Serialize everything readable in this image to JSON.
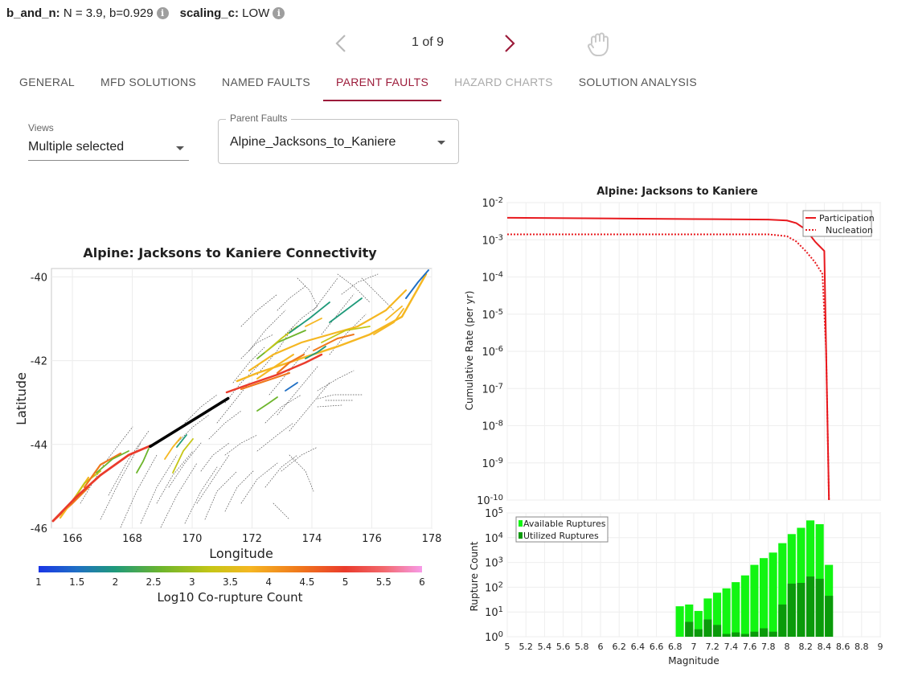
{
  "params": {
    "b_and_n_label": "b_and_n:",
    "b_and_n_value": "N = 3.9, b=0.929",
    "scaling_label": "scaling_c:",
    "scaling_value": "LOW"
  },
  "pager": {
    "count": "1 of 9"
  },
  "tabs": [
    {
      "label": "GENERAL",
      "state": "normal"
    },
    {
      "label": "MFD SOLUTIONS",
      "state": "normal"
    },
    {
      "label": "NAMED FAULTS",
      "state": "normal"
    },
    {
      "label": "PARENT FAULTS",
      "state": "active"
    },
    {
      "label": "HAZARD CHARTS",
      "state": "disabled"
    },
    {
      "label": "SOLUTION ANALYSIS",
      "state": "normal"
    }
  ],
  "views": {
    "label": "Views",
    "value": "Multiple selected"
  },
  "parent_faults": {
    "label": "Parent Faults",
    "value": "Alpine_Jacksons_to_Kaniere"
  },
  "colors": {
    "accent": "#9c1b3a",
    "participation": "#e8191e",
    "available": "#12f512",
    "utilized": "#0a9a0a"
  },
  "chart_data": [
    {
      "type": "map",
      "title": "Alpine: Jacksons to Kaniere Connectivity",
      "xlabel": "Longitude",
      "ylabel": "Latitude",
      "xlim": [
        165.3,
        178.0
      ],
      "ylim": [
        -46.0,
        -39.8
      ],
      "xticks": [
        "166",
        "168",
        "170",
        "172",
        "174",
        "176",
        "178"
      ],
      "yticks": [
        "-40",
        "-42",
        "-44",
        "-46"
      ],
      "colorbar": {
        "label": "Log10 Co-rupture Count",
        "range": [
          1,
          6
        ],
        "ticks": [
          "1",
          "1.5",
          "2",
          "2.5",
          "3",
          "3.5",
          "4",
          "4.5",
          "5",
          "5.5",
          "6"
        ]
      },
      "selected_fault": [
        [
          168.6,
          -44.05
        ],
        [
          171.2,
          -42.9
        ]
      ]
    },
    {
      "type": "line",
      "title": "Alpine: Jacksons to Kaniere",
      "ylabel": "Cumulative Rate (per yr)",
      "yscale": "log",
      "ylim": [
        1e-10,
        0.01
      ],
      "yticks": [
        {
          "base": "10",
          "exp": "-2"
        },
        {
          "base": "10",
          "exp": "-3"
        },
        {
          "base": "10",
          "exp": "-4"
        },
        {
          "base": "10",
          "exp": "-5"
        },
        {
          "base": "10",
          "exp": "-6"
        },
        {
          "base": "10",
          "exp": "-7"
        },
        {
          "base": "10",
          "exp": "-8"
        },
        {
          "base": "10",
          "exp": "-9"
        },
        {
          "base": "10",
          "exp": "-10"
        }
      ],
      "xlim": [
        5,
        9
      ],
      "legend_placement": "top-right",
      "series": [
        {
          "name": "Participation",
          "style": "solid",
          "x": [
            5.0,
            7.0,
            7.8,
            8.0,
            8.1,
            8.2,
            8.3,
            8.4,
            8.42,
            8.45
          ],
          "y": [
            0.0039,
            0.0036,
            0.0035,
            0.0033,
            0.0028,
            0.0019,
            0.0009,
            0.0005,
            1e-06,
            1e-10
          ]
        },
        {
          "name": "Nucleation",
          "style": "dotted",
          "x": [
            5.0,
            7.0,
            7.8,
            8.0,
            8.1,
            8.2,
            8.3,
            8.38,
            8.42,
            8.45
          ],
          "y": [
            0.0014,
            0.0014,
            0.0014,
            0.00125,
            0.0009,
            0.0005,
            0.00025,
            0.00012,
            1e-06,
            1e-10
          ]
        }
      ]
    },
    {
      "type": "bar",
      "xlabel": "Magnitude",
      "ylabel": "Rupture Count",
      "yscale": "log",
      "ylim": [
        1,
        100000
      ],
      "yticks": [
        {
          "base": "10",
          "exp": "0"
        },
        {
          "base": "10",
          "exp": "1"
        },
        {
          "base": "10",
          "exp": "2"
        },
        {
          "base": "10",
          "exp": "3"
        },
        {
          "base": "10",
          "exp": "4"
        },
        {
          "base": "10",
          "exp": "5"
        }
      ],
      "xlim": [
        5,
        9
      ],
      "xticks": [
        "5",
        "5.2",
        "5.4",
        "5.6",
        "5.8",
        "6",
        "6.2",
        "6.4",
        "6.6",
        "6.8",
        "7",
        "7.2",
        "7.4",
        "7.6",
        "7.8",
        "8",
        "8.2",
        "8.4",
        "8.6",
        "8.8",
        "9"
      ],
      "legend_placement": "top-left",
      "magnitudes": [
        6.85,
        6.95,
        7.05,
        7.15,
        7.25,
        7.35,
        7.45,
        7.55,
        7.65,
        7.75,
        7.85,
        7.95,
        8.05,
        8.15,
        8.25,
        8.35,
        8.45
      ],
      "series": [
        {
          "name": "Available Ruptures",
          "values": [
            17,
            20,
            11,
            35,
            60,
            90,
            160,
            300,
            800,
            1500,
            2500,
            6000,
            14000,
            25000,
            50000,
            35000,
            800
          ]
        },
        {
          "name": "Utilized Ruptures",
          "values": [
            1,
            4,
            2,
            5,
            3,
            1.3,
            1.5,
            1.3,
            1.6,
            2.2,
            1.6,
            20,
            140,
            150,
            270,
            220,
            45
          ]
        }
      ]
    }
  ]
}
